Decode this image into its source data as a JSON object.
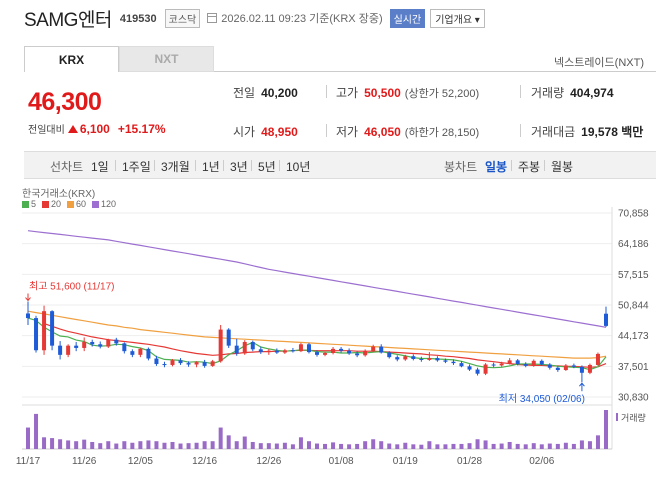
{
  "header": {
    "name": "SAMG엔터",
    "code": "419530",
    "market": "코스닥",
    "datetime": "2026.02.11 09:23  기준(KRX 장중)",
    "realtime": "실시간",
    "overview": "기업개요"
  },
  "tabs": {
    "krx": "KRX",
    "nxt": "NXT",
    "nxt_link": "넥스트레이드(NXT)"
  },
  "price": {
    "current": "46,300",
    "change_label": "전일대비",
    "change": "6,100",
    "change_pct": "+15.17%"
  },
  "stats": {
    "prev_label": "전일",
    "prev": "40,200",
    "high_label": "고가",
    "high": "50,500",
    "upper_limit": "(상한가 52,200)",
    "volume_label": "거래량",
    "volume": "404,974",
    "open_label": "시가",
    "open": "48,950",
    "low_label": "저가",
    "low": "46,050",
    "lower_limit": "(하한가 28,150)",
    "amount_label": "거래대금",
    "amount": "19,578 백만"
  },
  "period_bar": {
    "line_label": "선차트",
    "periods": [
      "1일",
      "1주일",
      "3개월",
      "1년",
      "3년",
      "5년",
      "10년"
    ],
    "candle_label": "봉차트",
    "candles": [
      "일봉",
      "주봉",
      "월봉"
    ],
    "active_candle": "일봉"
  },
  "chart_data": {
    "type": "candlestick",
    "title": "한국거래소(KRX)",
    "legend": [
      {
        "name": "5",
        "color": "#4caf50"
      },
      {
        "name": "20",
        "color": "#e53935"
      },
      {
        "name": "60",
        "color": "#f0a040"
      },
      {
        "name": "120",
        "color": "#9c6fd0"
      }
    ],
    "y_ticks": [
      "70,858",
      "64,186",
      "57,515",
      "50,844",
      "44,173",
      "37,501",
      "30,830"
    ],
    "ylim": [
      30830,
      70858
    ],
    "x_ticks": [
      "11/17",
      "11/26",
      "12/05",
      "12/16",
      "12/26",
      "01/08",
      "01/19",
      "01/28",
      "02/06"
    ],
    "high_annotation": "최고 51,600 (11/17)",
    "low_annotation": "최저 34,050 (02/06)",
    "volume_label": "거래량",
    "candles": [
      [
        49000,
        51600,
        46500,
        48000
      ],
      [
        48000,
        48500,
        40500,
        41000
      ],
      [
        41000,
        50700,
        40000,
        49500
      ],
      [
        49500,
        49700,
        41000,
        42000
      ],
      [
        42000,
        43000,
        39000,
        40000
      ],
      [
        40000,
        42300,
        39500,
        42000
      ],
      [
        42000,
        42800,
        40800,
        41500
      ],
      [
        41500,
        43800,
        40800,
        42800
      ],
      [
        42800,
        43300,
        41800,
        42300
      ],
      [
        42300,
        42900,
        41400,
        41800
      ],
      [
        41800,
        43500,
        41500,
        43300
      ],
      [
        43300,
        43700,
        42000,
        42500
      ],
      [
        42500,
        42700,
        40300,
        40800
      ],
      [
        40800,
        41200,
        39500,
        40000
      ],
      [
        40000,
        41500,
        39500,
        41300
      ],
      [
        41300,
        41600,
        38800,
        39200
      ],
      [
        39200,
        39800,
        37600,
        38000
      ],
      [
        38000,
        38500,
        37300,
        37800
      ],
      [
        37800,
        39100,
        37500,
        38800
      ],
      [
        38800,
        39300,
        37800,
        38200
      ],
      [
        38200,
        38600,
        37400,
        37900
      ],
      [
        37900,
        38600,
        37300,
        38400
      ],
      [
        38400,
        38900,
        37200,
        37600
      ],
      [
        37600,
        38900,
        37400,
        38600
      ],
      [
        38600,
        46500,
        38300,
        45500
      ],
      [
        45500,
        45800,
        41500,
        42000
      ],
      [
        42000,
        43500,
        39800,
        40300
      ],
      [
        40300,
        43200,
        40000,
        42800
      ],
      [
        42800,
        43100,
        40800,
        41200
      ],
      [
        41200,
        41800,
        40200,
        40600
      ],
      [
        40600,
        41300,
        40000,
        40900
      ],
      [
        40900,
        41400,
        40200,
        40500
      ],
      [
        40500,
        41300,
        40200,
        41000
      ],
      [
        41000,
        41500,
        40500,
        40800
      ],
      [
        40800,
        42600,
        40600,
        42300
      ],
      [
        42300,
        42600,
        40300,
        40600
      ],
      [
        40600,
        41000,
        39600,
        40000
      ],
      [
        40000,
        40700,
        39700,
        40400
      ],
      [
        40400,
        41700,
        40100,
        41300
      ],
      [
        41300,
        41700,
        40500,
        40900
      ],
      [
        40900,
        41400,
        40000,
        40300
      ],
      [
        40300,
        40700,
        39500,
        39900
      ],
      [
        39900,
        41200,
        39600,
        40800
      ],
      [
        40800,
        42200,
        40600,
        41800
      ],
      [
        41800,
        42300,
        40300,
        40500
      ],
      [
        40500,
        40800,
        39200,
        39500
      ],
      [
        39500,
        39900,
        38600,
        39000
      ],
      [
        39000,
        40000,
        38700,
        39700
      ],
      [
        39700,
        40100,
        38800,
        39100
      ],
      [
        39100,
        39600,
        38500,
        38900
      ],
      [
        38900,
        40600,
        38700,
        39300
      ],
      [
        39300,
        39700,
        38500,
        38800
      ],
      [
        38800,
        39200,
        38200,
        38500
      ],
      [
        38500,
        39000,
        37800,
        38200
      ],
      [
        38200,
        38600,
        37300,
        37500
      ],
      [
        37500,
        37900,
        36500,
        36800
      ],
      [
        36800,
        37200,
        35500,
        35900
      ],
      [
        35900,
        38200,
        35600,
        37900
      ],
      [
        37900,
        38300,
        37300,
        37700
      ],
      [
        37700,
        38500,
        37400,
        38100
      ],
      [
        38100,
        39300,
        37900,
        38800
      ],
      [
        38800,
        39100,
        37700,
        38000
      ],
      [
        38000,
        38400,
        37300,
        37600
      ],
      [
        37600,
        39000,
        37400,
        38700
      ],
      [
        38700,
        39000,
        37700,
        37900
      ],
      [
        37900,
        38200,
        36800,
        37200
      ],
      [
        37200,
        37500,
        36300,
        36700
      ],
      [
        36700,
        38000,
        36500,
        37700
      ],
      [
        37700,
        38100,
        37100,
        37400
      ],
      [
        37400,
        37700,
        34050,
        36100
      ],
      [
        36100,
        38100,
        35800,
        37800
      ],
      [
        37800,
        40500,
        37600,
        40200
      ],
      [
        48950,
        50500,
        46050,
        46300
      ]
    ],
    "volumes": [
      0.55,
      0.9,
      0.3,
      0.28,
      0.25,
      0.22,
      0.2,
      0.24,
      0.18,
      0.15,
      0.2,
      0.14,
      0.2,
      0.16,
      0.2,
      0.22,
      0.2,
      0.16,
      0.18,
      0.14,
      0.15,
      0.16,
      0.2,
      0.2,
      0.55,
      0.35,
      0.2,
      0.32,
      0.18,
      0.15,
      0.15,
      0.14,
      0.16,
      0.12,
      0.3,
      0.2,
      0.14,
      0.13,
      0.17,
      0.13,
      0.12,
      0.13,
      0.2,
      0.25,
      0.2,
      0.14,
      0.12,
      0.16,
      0.12,
      0.11,
      0.2,
      0.12,
      0.12,
      0.13,
      0.13,
      0.15,
      0.25,
      0.22,
      0.13,
      0.14,
      0.18,
      0.13,
      0.12,
      0.15,
      0.12,
      0.14,
      0.13,
      0.16,
      0.13,
      0.22,
      0.2,
      0.35,
      1.0
    ],
    "ma": {
      "5": [
        48000,
        47500,
        46000,
        45000,
        44100,
        43900,
        43200,
        42900,
        42100,
        41900,
        42000,
        42300,
        42200,
        41800,
        41500,
        40900,
        39600,
        39000,
        38900,
        38800,
        38400,
        38500,
        38400,
        38100,
        38700,
        40000,
        40900,
        42000,
        42700,
        41700,
        41300,
        41000,
        40800,
        40900,
        41100,
        41000,
        40700,
        40600,
        40600,
        40400,
        40400,
        40500,
        40400,
        40600,
        40700,
        40400,
        40100,
        39800,
        39400,
        39200,
        39200,
        39100,
        39000,
        38900,
        38600,
        38100,
        37600,
        37300,
        37200,
        37300,
        37600,
        38000,
        38000,
        38000,
        37900,
        37800,
        37500,
        37400,
        37300,
        37200,
        36800,
        37400,
        39600
      ],
      "20": [
        null,
        null,
        46800,
        46200,
        45600,
        45100,
        44700,
        44300,
        43900,
        43600,
        43300,
        43100,
        42900,
        42700,
        42500,
        42300,
        42000,
        41700,
        41300,
        40900,
        40600,
        40300,
        40100,
        39900,
        40000,
        40200,
        40300,
        40500,
        40600,
        40700,
        40700,
        40800,
        40800,
        40900,
        41000,
        41000,
        40900,
        40900,
        40900,
        40900,
        40900,
        40800,
        40800,
        40800,
        40700,
        40600,
        40500,
        40400,
        40300,
        40200,
        40000,
        39900,
        39700,
        39600,
        39400,
        39200,
        38900,
        38700,
        38500,
        38300,
        38100,
        37900,
        37800,
        37700,
        37700,
        37600,
        37600,
        37500,
        37500,
        37400,
        37300,
        37400,
        38100
      ],
      "60": [
        49500,
        49200,
        48900,
        48600,
        48300,
        48000,
        47700,
        47400,
        47100,
        46800,
        46500,
        46300,
        46000,
        45800,
        45500,
        45300,
        45100,
        44900,
        44700,
        44500,
        44300,
        44100,
        43900,
        43800,
        43700,
        43600,
        43500,
        43400,
        43300,
        43200,
        43100,
        43000,
        42900,
        42800,
        42700,
        42600,
        42500,
        42400,
        42300,
        42200,
        42100,
        42000,
        41900,
        41800,
        41700,
        41600,
        41500,
        41400,
        41300,
        41200,
        41100,
        41000,
        40900,
        40800,
        40700,
        40600,
        40500,
        40400,
        40300,
        40200,
        40100,
        40000,
        39900,
        39800,
        39700,
        39600,
        39500,
        39400,
        39300,
        39300,
        39300,
        39400,
        39700
      ],
      "120": [
        67000,
        66800,
        66600,
        66400,
        66200,
        66000,
        65800,
        65600,
        65400,
        65200,
        65000,
        64700,
        64400,
        64100,
        63800,
        63500,
        63200,
        62900,
        62600,
        62300,
        62000,
        61700,
        61400,
        61100,
        60800,
        60500,
        60200,
        59800,
        59400,
        59000,
        58600,
        58300,
        58000,
        57700,
        57400,
        57100,
        56800,
        56500,
        56200,
        55900,
        55600,
        55300,
        55000,
        54700,
        54400,
        54100,
        53800,
        53500,
        53200,
        52900,
        52600,
        52300,
        52000,
        51700,
        51400,
        51100,
        50800,
        50500,
        50200,
        49900,
        49600,
        49300,
        49000,
        48700,
        48400,
        48100,
        47800,
        47500,
        47200,
        46900,
        46600,
        46300,
        46000
      ]
    }
  }
}
